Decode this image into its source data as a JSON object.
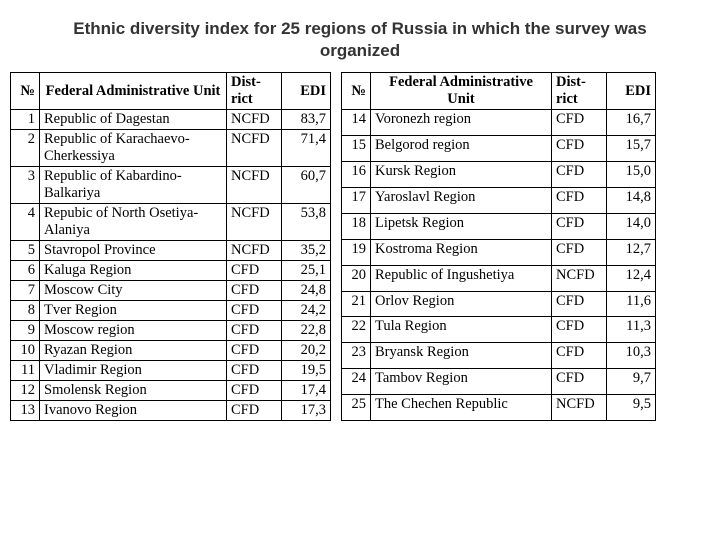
{
  "title": "Ethnic diversity index for 25 regions of Russia in which the survey was organized",
  "headers": {
    "num": "№",
    "unit": "Federal Administrative Unit",
    "dist": "Dist-rict",
    "edi": "EDI"
  },
  "left": [
    {
      "n": "1",
      "unit": "Republic of Dagestan",
      "dist": "NCFD",
      "edi": "83,7"
    },
    {
      "n": "2",
      "unit": "Republic of Karachaevo-Cherkessiya",
      "dist": "NCFD",
      "edi": "71,4"
    },
    {
      "n": "3",
      "unit": "Republic of Kabardino-Balkariya",
      "dist": "NCFD",
      "edi": "60,7"
    },
    {
      "n": "4",
      "unit": "Repubic of North Osetiya-Alaniya",
      "dist": "NCFD",
      "edi": "53,8"
    },
    {
      "n": "5",
      "unit": "Stavropol Province",
      "dist": "NCFD",
      "edi": "35,2"
    },
    {
      "n": "6",
      "unit": "Kaluga Region",
      "dist": "CFD",
      "edi": "25,1"
    },
    {
      "n": "7",
      "unit": "Moscow City",
      "dist": "CFD",
      "edi": "24,8"
    },
    {
      "n": "8",
      "unit": "Tver Region",
      "dist": "CFD",
      "edi": "24,2"
    },
    {
      "n": "9",
      "unit": "Moscow region",
      "dist": "CFD",
      "edi": "22,8"
    },
    {
      "n": "10",
      "unit": "Ryazan Region",
      "dist": "CFD",
      "edi": "20,2"
    },
    {
      "n": "11",
      "unit": "Vladimir Region",
      "dist": "CFD",
      "edi": "19,5"
    },
    {
      "n": "12",
      "unit": "Smolensk Region",
      "dist": "CFD",
      "edi": "17,4"
    },
    {
      "n": "13",
      "unit": "Ivanovo Region",
      "dist": "CFD",
      "edi": "17,3"
    }
  ],
  "right": [
    {
      "n": "14",
      "unit": "Voronezh region",
      "dist": "CFD",
      "edi": "16,7"
    },
    {
      "n": "15",
      "unit": "Belgorod region",
      "dist": "CFD",
      "edi": "15,7"
    },
    {
      "n": "16",
      "unit": "Kursk Region",
      "dist": "CFD",
      "edi": "15,0"
    },
    {
      "n": "17",
      "unit": "Yaroslavl Region",
      "dist": "CFD",
      "edi": "14,8"
    },
    {
      "n": "18",
      "unit": "Lipetsk Region",
      "dist": "CFD",
      "edi": "14,0"
    },
    {
      "n": "19",
      "unit": "Kostroma Region",
      "dist": "CFD",
      "edi": "12,7"
    },
    {
      "n": "20",
      "unit": "Republic of Ingushetiya",
      "dist": "NCFD",
      "edi": "12,4"
    },
    {
      "n": "21",
      "unit": "Orlov Region",
      "dist": "CFD",
      "edi": "11,6"
    },
    {
      "n": "22",
      "unit": "Tula Region",
      "dist": "CFD",
      "edi": "11,3"
    },
    {
      "n": "23",
      "unit": "Bryansk Region",
      "dist": "CFD",
      "edi": "10,3"
    },
    {
      "n": "24",
      "unit": "Tambov Region",
      "dist": "CFD",
      "edi": "9,7"
    },
    {
      "n": "25",
      "unit": "The Chechen Republic",
      "dist": "NCFD",
      "edi": "9,5"
    }
  ]
}
